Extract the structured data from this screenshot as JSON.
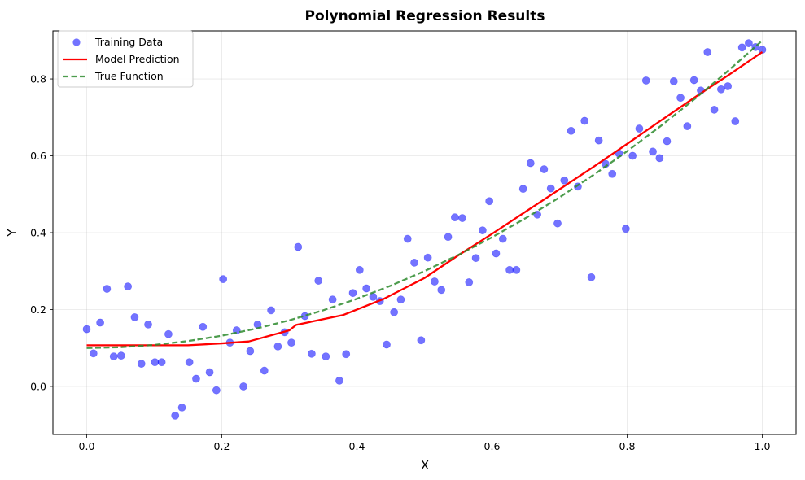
{
  "chart_data": {
    "type": "scatter",
    "title": "Polynomial Regression Results",
    "xlabel": "X",
    "ylabel": "Y",
    "xlim": [
      -0.05,
      1.05
    ],
    "ylim": [
      -0.125,
      0.925
    ],
    "xticks": [
      0.0,
      0.2,
      0.4,
      0.6,
      0.8,
      1.0
    ],
    "xtick_labels": [
      "0.0",
      "0.2",
      "0.4",
      "0.6",
      "0.8",
      "1.0"
    ],
    "yticks": [
      0.0,
      0.2,
      0.4,
      0.6,
      0.8
    ],
    "ytick_labels": [
      "0.0",
      "0.2",
      "0.4",
      "0.6",
      "0.8"
    ],
    "grid": true,
    "legend_position": "top-left",
    "series": [
      {
        "name": "Training Data",
        "kind": "scatter",
        "color": "#0000ff",
        "points": [
          [
            0.0,
            0.149
          ],
          [
            0.01,
            0.086
          ],
          [
            0.02,
            0.166
          ],
          [
            0.03,
            0.254
          ],
          [
            0.04,
            0.078
          ],
          [
            0.051,
            0.08
          ],
          [
            0.061,
            0.26
          ],
          [
            0.071,
            0.18
          ],
          [
            0.081,
            0.059
          ],
          [
            0.091,
            0.161
          ],
          [
            0.101,
            0.063
          ],
          [
            0.111,
            0.063
          ],
          [
            0.121,
            0.136
          ],
          [
            0.131,
            -0.076
          ],
          [
            0.141,
            -0.055
          ],
          [
            0.152,
            0.063
          ],
          [
            0.162,
            0.02
          ],
          [
            0.172,
            0.155
          ],
          [
            0.182,
            0.037
          ],
          [
            0.192,
            -0.01
          ],
          [
            0.202,
            0.279
          ],
          [
            0.212,
            0.114
          ],
          [
            0.222,
            0.146
          ],
          [
            0.232,
            0.0
          ],
          [
            0.242,
            0.092
          ],
          [
            0.253,
            0.161
          ],
          [
            0.263,
            0.041
          ],
          [
            0.273,
            0.198
          ],
          [
            0.283,
            0.104
          ],
          [
            0.293,
            0.141
          ],
          [
            0.303,
            0.114
          ],
          [
            0.313,
            0.363
          ],
          [
            0.323,
            0.183
          ],
          [
            0.333,
            0.085
          ],
          [
            0.343,
            0.275
          ],
          [
            0.354,
            0.078
          ],
          [
            0.364,
            0.226
          ],
          [
            0.374,
            0.015
          ],
          [
            0.384,
            0.084
          ],
          [
            0.394,
            0.243
          ],
          [
            0.404,
            0.303
          ],
          [
            0.414,
            0.255
          ],
          [
            0.424,
            0.233
          ],
          [
            0.434,
            0.222
          ],
          [
            0.444,
            0.109
          ],
          [
            0.455,
            0.193
          ],
          [
            0.465,
            0.226
          ],
          [
            0.475,
            0.384
          ],
          [
            0.485,
            0.322
          ],
          [
            0.495,
            0.12
          ],
          [
            0.505,
            0.335
          ],
          [
            0.515,
            0.273
          ],
          [
            0.525,
            0.251
          ],
          [
            0.535,
            0.389
          ],
          [
            0.545,
            0.44
          ],
          [
            0.556,
            0.438
          ],
          [
            0.566,
            0.271
          ],
          [
            0.576,
            0.334
          ],
          [
            0.586,
            0.406
          ],
          [
            0.596,
            0.482
          ],
          [
            0.606,
            0.346
          ],
          [
            0.616,
            0.384
          ],
          [
            0.626,
            0.303
          ],
          [
            0.636,
            0.303
          ],
          [
            0.646,
            0.514
          ],
          [
            0.657,
            0.581
          ],
          [
            0.667,
            0.447
          ],
          [
            0.677,
            0.565
          ],
          [
            0.687,
            0.515
          ],
          [
            0.697,
            0.424
          ],
          [
            0.707,
            0.536
          ],
          [
            0.717,
            0.665
          ],
          [
            0.727,
            0.52
          ],
          [
            0.737,
            0.691
          ],
          [
            0.747,
            0.284
          ],
          [
            0.758,
            0.64
          ],
          [
            0.768,
            0.579
          ],
          [
            0.778,
            0.553
          ],
          [
            0.788,
            0.606
          ],
          [
            0.798,
            0.41
          ],
          [
            0.808,
            0.6
          ],
          [
            0.818,
            0.671
          ],
          [
            0.828,
            0.796
          ],
          [
            0.838,
            0.611
          ],
          [
            0.848,
            0.594
          ],
          [
            0.859,
            0.638
          ],
          [
            0.869,
            0.794
          ],
          [
            0.879,
            0.751
          ],
          [
            0.889,
            0.677
          ],
          [
            0.899,
            0.797
          ],
          [
            0.909,
            0.77
          ],
          [
            0.919,
            0.87
          ],
          [
            0.929,
            0.72
          ],
          [
            0.939,
            0.773
          ],
          [
            0.949,
            0.781
          ],
          [
            0.96,
            0.69
          ],
          [
            0.97,
            0.882
          ],
          [
            0.98,
            0.893
          ],
          [
            0.99,
            0.883
          ],
          [
            1.0,
            0.876
          ]
        ]
      },
      {
        "name": "Model Prediction",
        "kind": "line",
        "color": "#ff0000",
        "dashed": false,
        "points": [
          [
            0.0,
            0.107
          ],
          [
            0.05,
            0.107
          ],
          [
            0.1,
            0.107
          ],
          [
            0.15,
            0.107
          ],
          [
            0.2,
            0.112
          ],
          [
            0.24,
            0.117
          ],
          [
            0.3,
            0.146
          ],
          [
            0.31,
            0.16
          ],
          [
            0.38,
            0.186
          ],
          [
            0.44,
            0.228
          ],
          [
            0.5,
            0.282
          ],
          [
            0.55,
            0.341
          ],
          [
            0.6,
            0.397
          ],
          [
            0.65,
            0.455
          ],
          [
            0.7,
            0.513
          ],
          [
            0.75,
            0.571
          ],
          [
            0.8,
            0.631
          ],
          [
            0.85,
            0.692
          ],
          [
            0.9,
            0.752
          ],
          [
            0.95,
            0.81
          ],
          [
            1.0,
            0.87
          ]
        ]
      },
      {
        "name": "True Function",
        "kind": "line",
        "color": "#2e8b2e",
        "dashed": true,
        "points": [
          [
            0.0,
            0.1
          ],
          [
            0.05,
            0.102
          ],
          [
            0.1,
            0.108
          ],
          [
            0.15,
            0.118
          ],
          [
            0.2,
            0.132
          ],
          [
            0.25,
            0.15
          ],
          [
            0.3,
            0.172
          ],
          [
            0.35,
            0.198
          ],
          [
            0.4,
            0.228
          ],
          [
            0.45,
            0.262
          ],
          [
            0.5,
            0.3
          ],
          [
            0.55,
            0.342
          ],
          [
            0.6,
            0.388
          ],
          [
            0.65,
            0.438
          ],
          [
            0.7,
            0.492
          ],
          [
            0.75,
            0.55
          ],
          [
            0.8,
            0.612
          ],
          [
            0.85,
            0.678
          ],
          [
            0.9,
            0.748
          ],
          [
            0.95,
            0.822
          ],
          [
            1.0,
            0.9
          ]
        ]
      }
    ]
  }
}
